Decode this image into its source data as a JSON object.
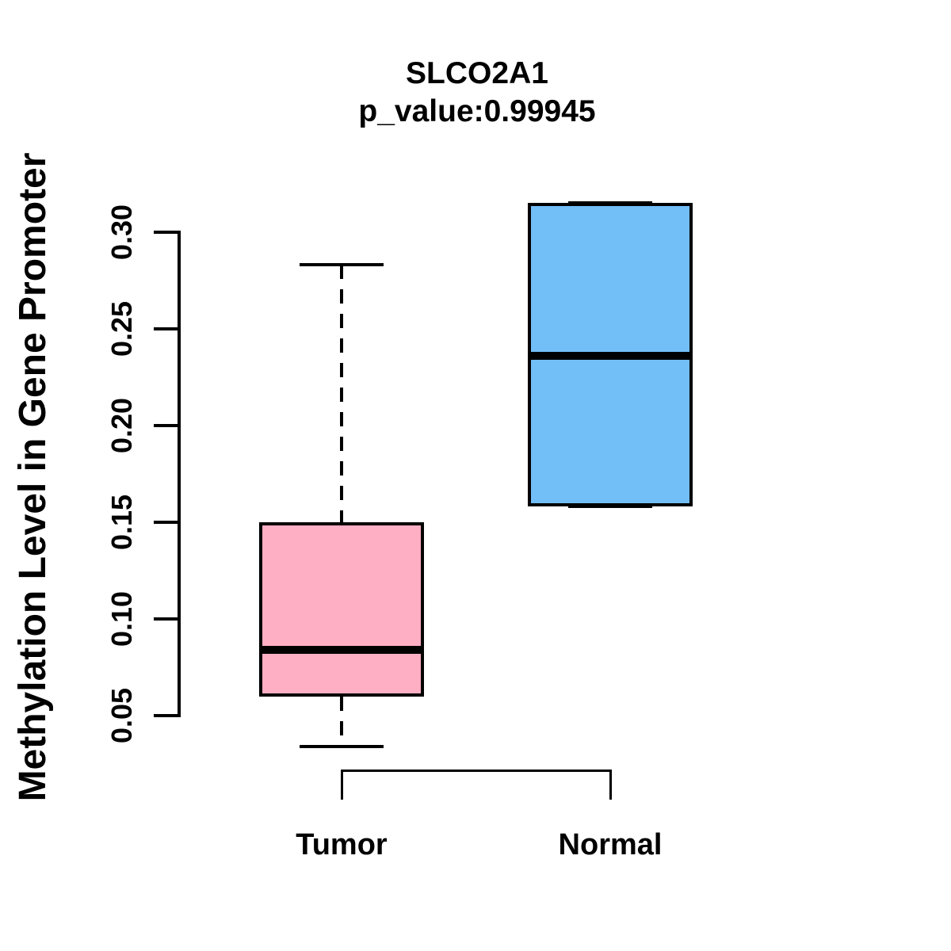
{
  "header": {
    "title": "SLCO2A1",
    "subtitle": "p_value:0.99945"
  },
  "chart_data": {
    "type": "boxplot",
    "title": "SLCO2A1",
    "subtitle": "p_value:0.99945",
    "xlabel": "",
    "ylabel": "Methylation Level in Gene Promoter",
    "categories": [
      "Tumor",
      "Normal"
    ],
    "y_ticks": [
      0.05,
      0.1,
      0.15,
      0.2,
      0.25,
      0.3
    ],
    "y_tick_labels": [
      "0.05",
      "0.10",
      "0.15",
      "0.20",
      "0.25",
      "0.30"
    ],
    "ylim": [
      0.02,
      0.326
    ],
    "grid": false,
    "legend": "none",
    "series": [
      {
        "name": "Tumor",
        "color": "#FFAFC3",
        "whisker_low": 0.034,
        "q1": 0.06,
        "median": 0.084,
        "q3": 0.15,
        "whisker_high": 0.283
      },
      {
        "name": "Normal",
        "color": "#72BEF7",
        "whisker_low": 0.158,
        "q1": 0.158,
        "median": 0.236,
        "q3": 0.315,
        "whisker_high": 0.315
      }
    ]
  },
  "colors": {
    "tumor_fill": "#FFAFC3",
    "normal_fill": "#72BEF7",
    "line": "#000000",
    "background": "#FFFFFF"
  }
}
